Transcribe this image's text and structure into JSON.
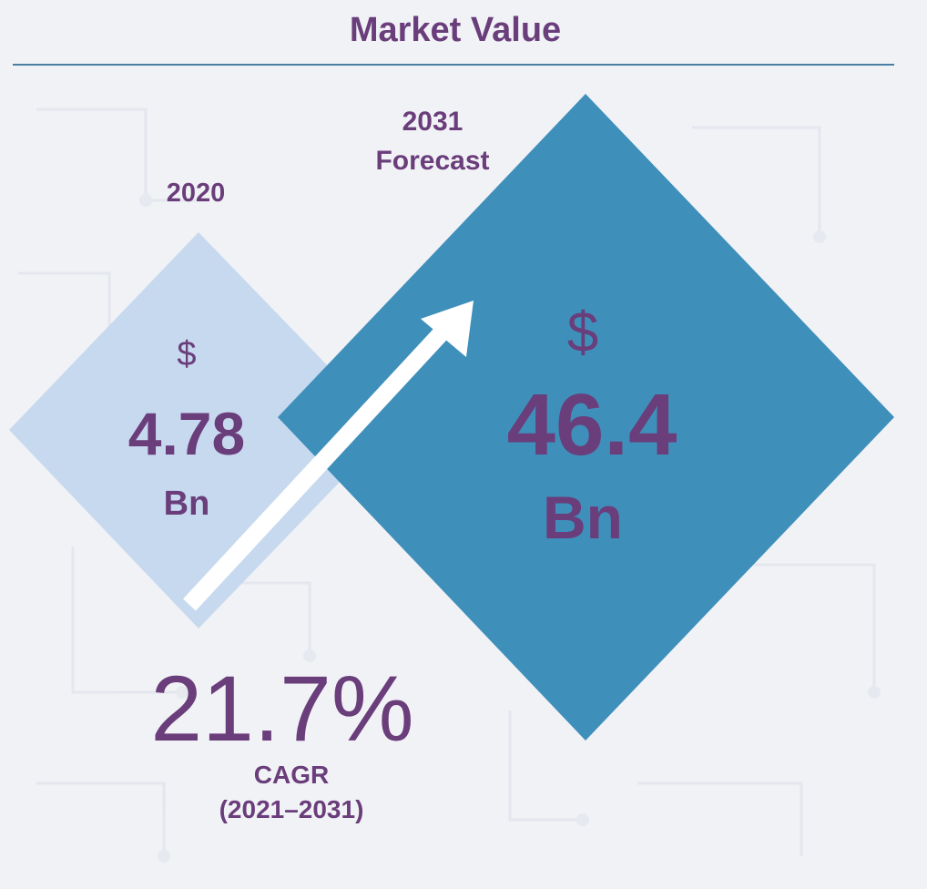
{
  "title": "Market Value",
  "year_2020": "2020",
  "year_2031": "2031",
  "forecast_label": "Forecast",
  "value_2020": {
    "currency": "$",
    "amount": "4.78",
    "unit": "Bn"
  },
  "value_2031": {
    "currency": "$",
    "amount": "46.4",
    "unit": "Bn"
  },
  "cagr": {
    "value": "21.7%",
    "label": "CAGR",
    "period": "(2021–2031)"
  },
  "colors": {
    "title_text": "#6a3d7b",
    "diamond_2020": "#c7d9ef",
    "diamond_2031": "#3f8fbb",
    "arrow": "#ffffff",
    "rule": "#4a7fa3"
  }
}
